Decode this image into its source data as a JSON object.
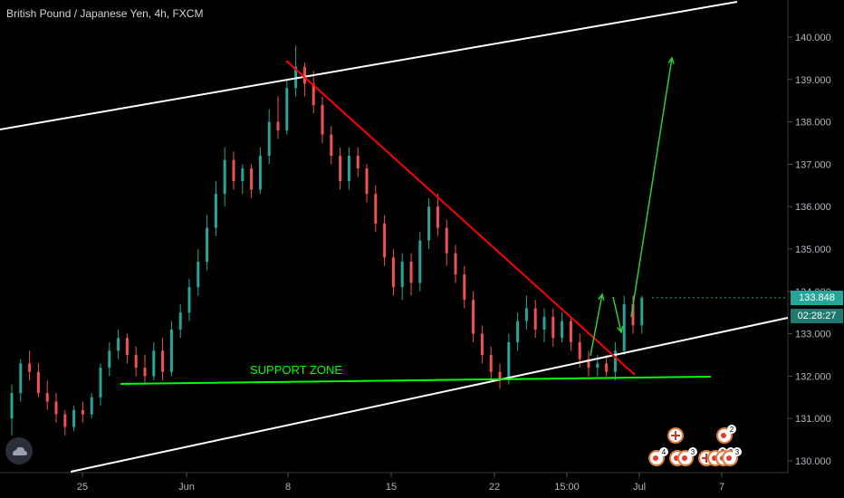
{
  "header": {
    "symbol_title": "British Pound / Japanese Yen, 4h, FXCM"
  },
  "price_axis": {
    "ticks": [
      "140.000",
      "139.000",
      "138.000",
      "137.000",
      "136.000",
      "135.000",
      "134.000",
      "133.000",
      "132.000",
      "131.000",
      "130.000"
    ]
  },
  "time_axis": {
    "ticks": [
      "25",
      "Jun",
      "8",
      "15",
      "22",
      "15:00",
      "Jul",
      "7"
    ]
  },
  "tags": {
    "last_price": "133.848",
    "last_price_color": "#26a69a",
    "countdown": "02:28:27",
    "countdown_color": "#1e7a6e"
  },
  "annotations": {
    "support_label": "SUPPORT ZONE",
    "support_color": "#00ff00",
    "trend_color": "#ff0000",
    "channel_color": "#ffffff"
  },
  "event_markers": {
    "counts": [
      "2",
      "4",
      "3",
      "3",
      "2",
      "3"
    ]
  },
  "colors": {
    "up": "#26a69a",
    "down": "#ef5350",
    "background": "#000000"
  },
  "chart_data": {
    "type": "candlestick",
    "title": "British Pound / Japanese Yen, 4h, FXCM",
    "ylim": [
      129.8,
      141.2
    ],
    "grid": false,
    "series": [
      {
        "values": [
          [
            131.0,
            131.8,
            130.6,
            131.6
          ],
          [
            131.6,
            132.4,
            131.4,
            132.3
          ],
          [
            132.3,
            132.6,
            131.9,
            132.1
          ],
          [
            132.1,
            132.3,
            131.5,
            131.6
          ],
          [
            131.6,
            131.9,
            131.2,
            131.4
          ],
          [
            131.4,
            131.6,
            130.9,
            131.1
          ],
          [
            131.1,
            131.2,
            130.6,
            130.8
          ],
          [
            130.8,
            131.3,
            130.7,
            131.2
          ],
          [
            131.2,
            131.4,
            130.9,
            131.1
          ],
          [
            131.1,
            131.6,
            131.0,
            131.5
          ],
          [
            131.5,
            132.3,
            131.3,
            132.2
          ],
          [
            132.2,
            132.8,
            132.0,
            132.6
          ],
          [
            132.6,
            133.1,
            132.4,
            132.9
          ],
          [
            132.9,
            133.0,
            132.3,
            132.5
          ],
          [
            132.5,
            132.7,
            132.0,
            132.2
          ],
          [
            132.2,
            132.5,
            131.8,
            132.0
          ],
          [
            132.0,
            132.8,
            131.9,
            132.6
          ],
          [
            132.6,
            132.9,
            131.9,
            132.1
          ],
          [
            132.1,
            133.3,
            132.0,
            133.1
          ],
          [
            133.1,
            133.7,
            132.9,
            133.5
          ],
          [
            133.5,
            134.3,
            133.3,
            134.1
          ],
          [
            134.1,
            135.0,
            133.9,
            134.7
          ],
          [
            134.7,
            135.8,
            134.5,
            135.5
          ],
          [
            135.5,
            136.6,
            135.3,
            136.3
          ],
          [
            136.3,
            137.4,
            136.0,
            137.1
          ],
          [
            137.1,
            137.3,
            136.4,
            136.6
          ],
          [
            136.6,
            137.0,
            136.3,
            136.9
          ],
          [
            136.9,
            137.0,
            136.2,
            136.4
          ],
          [
            136.4,
            137.4,
            136.3,
            137.2
          ],
          [
            137.2,
            138.3,
            137.0,
            138.0
          ],
          [
            138.0,
            138.6,
            137.6,
            137.8
          ],
          [
            137.8,
            139.0,
            137.7,
            138.8
          ],
          [
            138.8,
            139.8,
            138.6,
            139.3
          ],
          [
            139.3,
            139.4,
            138.6,
            138.9
          ],
          [
            138.9,
            139.2,
            138.2,
            138.4
          ],
          [
            138.4,
            138.6,
            137.5,
            137.7
          ],
          [
            137.7,
            137.9,
            137.0,
            137.2
          ],
          [
            137.2,
            137.4,
            136.4,
            136.6
          ],
          [
            136.6,
            137.4,
            136.4,
            137.2
          ],
          [
            137.2,
            137.4,
            136.7,
            136.9
          ],
          [
            136.9,
            137.0,
            136.1,
            136.3
          ],
          [
            136.3,
            136.5,
            135.4,
            135.6
          ],
          [
            135.6,
            135.8,
            134.6,
            134.8
          ],
          [
            134.8,
            135.0,
            133.9,
            134.1
          ],
          [
            134.1,
            134.9,
            133.8,
            134.7
          ],
          [
            134.7,
            134.9,
            133.9,
            134.2
          ],
          [
            134.2,
            135.4,
            134.0,
            135.2
          ],
          [
            135.2,
            136.2,
            135.0,
            136.0
          ],
          [
            136.0,
            136.3,
            135.3,
            135.5
          ],
          [
            135.5,
            135.7,
            134.6,
            134.9
          ],
          [
            134.9,
            135.1,
            134.2,
            134.4
          ],
          [
            134.4,
            134.6,
            133.6,
            133.8
          ],
          [
            133.8,
            134.0,
            132.8,
            133.0
          ],
          [
            133.0,
            133.2,
            132.3,
            132.5
          ],
          [
            132.5,
            132.7,
            131.9,
            132.1
          ],
          [
            132.1,
            132.3,
            131.7,
            131.9
          ],
          [
            131.9,
            133.0,
            131.8,
            132.8
          ],
          [
            132.8,
            133.5,
            132.6,
            133.3
          ],
          [
            133.3,
            133.9,
            133.1,
            133.6
          ],
          [
            133.6,
            133.8,
            132.9,
            133.1
          ],
          [
            133.1,
            133.6,
            132.8,
            133.4
          ],
          [
            133.4,
            133.6,
            132.7,
            132.9
          ],
          [
            132.9,
            133.5,
            132.8,
            133.3
          ],
          [
            133.3,
            133.4,
            132.6,
            132.8
          ],
          [
            132.8,
            133.0,
            132.2,
            132.4
          ],
          [
            132.4,
            132.6,
            132.0,
            132.2
          ],
          [
            132.2,
            132.5,
            132.0,
            132.3
          ],
          [
            132.3,
            132.5,
            132.0,
            132.1
          ],
          [
            132.1,
            132.8,
            131.9,
            132.6
          ],
          [
            132.6,
            133.9,
            132.5,
            133.7
          ],
          [
            133.7,
            133.9,
            133.0,
            133.2
          ],
          [
            133.2,
            133.9,
            133.0,
            133.85
          ]
        ]
      }
    ]
  }
}
